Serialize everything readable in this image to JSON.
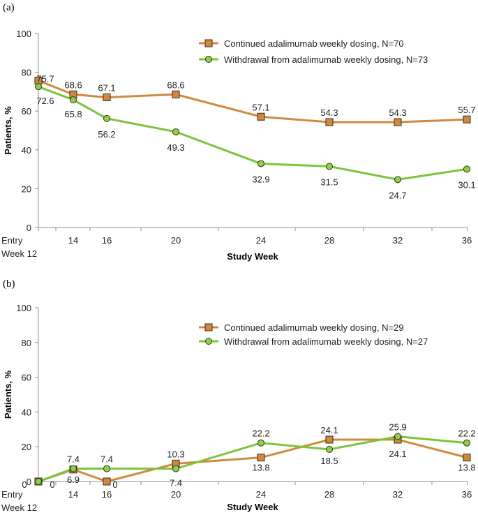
{
  "chart_data": [
    {
      "panel_label": "(a)",
      "type": "line",
      "categories": [
        "Entry Week 12",
        "14",
        "16",
        "20",
        "24",
        "28",
        "32",
        "36"
      ],
      "x": [
        12,
        14,
        16,
        20,
        24,
        28,
        32,
        36
      ],
      "xlabel": "Study Week",
      "ylabel": "Patients, %",
      "ylim": [
        0,
        100
      ],
      "yticks": [
        0,
        20,
        40,
        60,
        80,
        100
      ],
      "legend_position": "top-right",
      "series": [
        {
          "name": "Continued adalimumab weekly dosing, N=70",
          "marker": "square",
          "color": "#D08A40",
          "marker_fill": "#D08A40",
          "values": [
            75.7,
            68.6,
            67.1,
            68.6,
            57.1,
            54.3,
            54.3,
            55.7
          ],
          "labels": [
            "75.7",
            "68.6",
            "67.1",
            "68.6",
            "57.1",
            "54.3",
            "54.3",
            "55.7"
          ],
          "label_position": "above"
        },
        {
          "name": "Withdrawal from adalimumab weekly dosing, N=73",
          "marker": "circle",
          "color": "#7CC43A",
          "marker_fill": "#8ED04A",
          "values": [
            72.6,
            65.8,
            56.2,
            49.3,
            32.9,
            31.5,
            24.7,
            30.1
          ],
          "labels": [
            "72.6",
            "65.8",
            "56.2",
            "49.3",
            "32.9",
            "31.5",
            "24.7",
            "30.1"
          ],
          "label_position": "below"
        }
      ]
    },
    {
      "panel_label": "(b)",
      "type": "line",
      "categories": [
        "Entry Week 12",
        "14",
        "16",
        "20",
        "24",
        "28",
        "32",
        "36"
      ],
      "x": [
        12,
        14,
        16,
        20,
        24,
        28,
        32,
        36
      ],
      "xlabel": "Study Week",
      "ylabel": "Patients, %",
      "ylim": [
        0,
        100
      ],
      "yticks": [
        0,
        20,
        40,
        60,
        80,
        100
      ],
      "legend_position": "top-right",
      "series": [
        {
          "name": "Continued adalimumab weekly dosing, N=29",
          "marker": "square",
          "color": "#D08A40",
          "marker_fill": "#D08A40",
          "values": [
            0,
            6.9,
            0,
            10.3,
            13.8,
            24.1,
            24.1,
            13.8
          ],
          "labels": [
            "0",
            "6.9",
            "0",
            "10.3",
            "13.8",
            "24.1",
            "24.1",
            "13.8"
          ],
          "label_position": "mixed"
        },
        {
          "name": "Withdrawal from adalimumab weekly dosing, N=27",
          "marker": "circle",
          "color": "#7CC43A",
          "marker_fill": "#8ED04A",
          "values": [
            0,
            7.4,
            7.4,
            7.4,
            22.2,
            18.5,
            25.9,
            22.2
          ],
          "labels": [
            "0",
            "7.4",
            "7.4",
            "7.4",
            "22.2",
            "18.5",
            "25.9",
            "22.2"
          ],
          "label_position": "mixed"
        }
      ]
    }
  ]
}
